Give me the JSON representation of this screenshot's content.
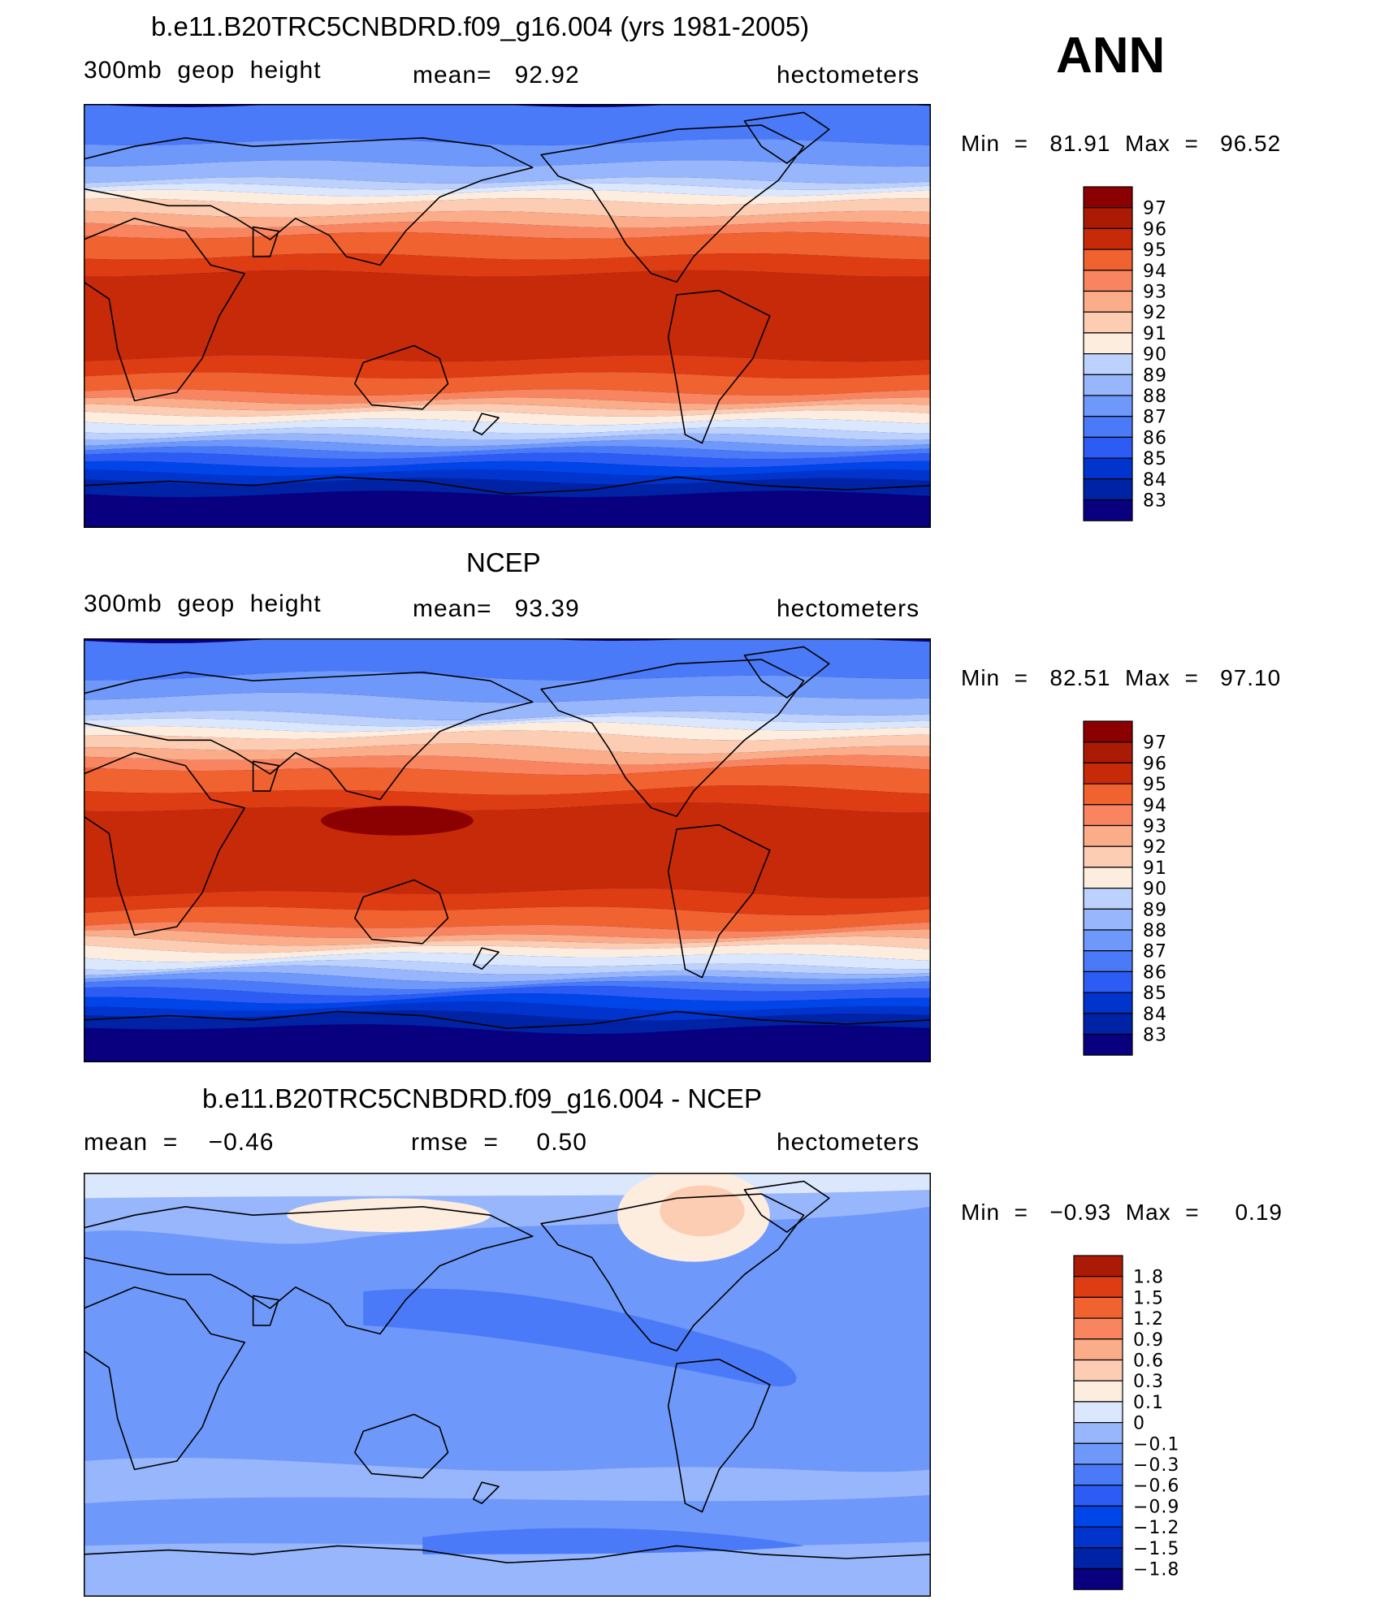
{
  "season": "ANN",
  "palette_full": [
    "#08007f",
    "#0023a6",
    "#0034cd",
    "#0045e8",
    "#2d5cf5",
    "#4a7af8",
    "#6e98fa",
    "#97b6fb",
    "#bcd1fc",
    "#dbe7fd",
    "#fdeddf",
    "#fccdb3",
    "#fbac88",
    "#f88560",
    "#f0622f",
    "#de3c12",
    "#c72a09",
    "#ab1a05",
    "#8b0000"
  ],
  "palette_diff": [
    "#08007f",
    "#0023a6",
    "#0034cd",
    "#0045e8",
    "#2d5cf5",
    "#4a7af8",
    "#6e98fa",
    "#97b6fb",
    "#dbe7fd",
    "#fdeddf",
    "#fccdb3",
    "#fbac88",
    "#f88560",
    "#f0622f",
    "#de3c12",
    "#ab1a05"
  ],
  "panels": [
    {
      "title": "b.e11.B20TRC5CNBDRD.f09_g16.004 (yrs 1981-2005)",
      "left": "300mb  geop  height",
      "center": "mean=   92.92",
      "right": "hectometers",
      "minmax": "Min  =   81.91  Max  =   96.52",
      "levels": [
        "97",
        "96",
        "95",
        "94",
        "93",
        "92",
        "91",
        "90",
        "89",
        "88",
        "87",
        "86",
        "85",
        "84",
        "83"
      ]
    },
    {
      "title": "NCEP",
      "left": "300mb  geop  height",
      "center": "mean=   93.39",
      "right": "hectometers",
      "minmax": "Min  =   82.51  Max  =   97.10",
      "levels": [
        "97",
        "96",
        "95",
        "94",
        "93",
        "92",
        "91",
        "90",
        "89",
        "88",
        "87",
        "86",
        "85",
        "84",
        "83"
      ]
    },
    {
      "title": "b.e11.B20TRC5CNBDRD.f09_g16.004 - NCEP",
      "left": "mean  =    −0.46",
      "center": "rmse  =     0.50",
      "right": "hectometers",
      "minmax": "Min  =   −0.93  Max  =     0.19",
      "levels": [
        "1.8",
        "1.5",
        "1.2",
        "0.9",
        "0.6",
        "0.3",
        "0.1",
        "0",
        "−0.1",
        "−0.3",
        "−0.6",
        "−0.9",
        "−1.2",
        "−1.5",
        "−1.8"
      ]
    }
  ]
}
